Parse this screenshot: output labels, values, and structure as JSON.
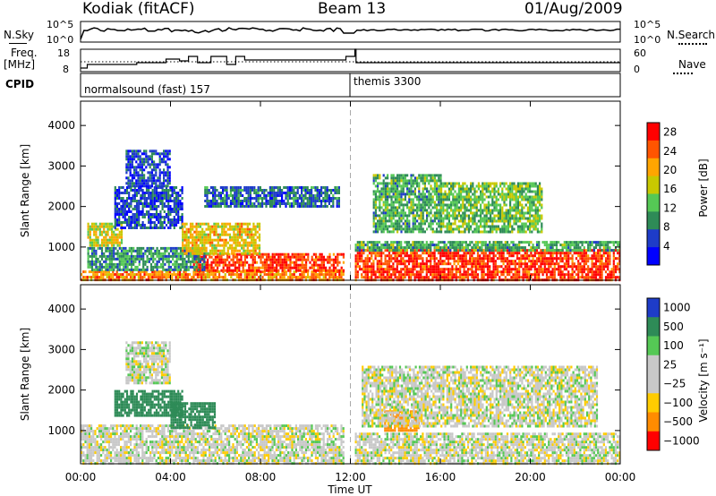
{
  "header": {
    "station": "Kodiak (fitACF)",
    "beam": "Beam 13",
    "date": "01/Aug/2009"
  },
  "strip": {
    "nsky_label": "N.Sky",
    "nsearch_label": "N.Search",
    "freq_label": "Freq.",
    "freq_unit": "[MHz]",
    "nave_label": "Nave",
    "cpid_label": "CPID",
    "left_top_ticks": [
      "10^5",
      "10^0"
    ],
    "right_top_ticks": [
      "10^5",
      "10^0"
    ],
    "freq_ticks": [
      "18",
      "8"
    ],
    "nave_ticks": [
      "60",
      "0"
    ],
    "cpid_segments": [
      {
        "start_hour": 0.0,
        "end_hour": 11.8,
        "label": "normalsound (fast) 157"
      },
      {
        "start_hour": 12.2,
        "end_hour": 24.0,
        "label": "themis 3300"
      }
    ]
  },
  "chart_data": [
    {
      "type": "heatmap",
      "quantity": "power",
      "ylabel": "Slant Range [km]",
      "xlabel": "Time UT",
      "ylim": [
        180,
        4600
      ],
      "xlim": [
        0,
        24
      ],
      "y_ticks": [
        "1000",
        "2000",
        "3000",
        "4000"
      ],
      "y_tick_values": [
        1000,
        2000,
        3000,
        4000
      ],
      "x_ticks": [
        "00:00",
        "04:00",
        "08:00",
        "12:00",
        "16:00",
        "20:00",
        "00:00"
      ],
      "x_tick_values": [
        0,
        4,
        8,
        12,
        16,
        20,
        24
      ],
      "colorbar": {
        "label": "Power [dB]",
        "range": [
          0,
          30
        ],
        "ticks": [
          "4",
          "8",
          "12",
          "16",
          "20",
          "24",
          "28"
        ],
        "tick_values": [
          4,
          8,
          12,
          16,
          20,
          24,
          28
        ],
        "colors": [
          "#0000ff",
          "#1e3cc8",
          "#2e8b57",
          "#55c855",
          "#c8c800",
          "#ffa500",
          "#ff5500",
          "#ff0000"
        ]
      },
      "data_gap_hours": [
        11.7,
        12.2
      ],
      "regions": [
        {
          "t": [
            0.0,
            11.7
          ],
          "r": [
            200,
            420
          ],
          "level": 24
        },
        {
          "t": [
            5.0,
            11.7
          ],
          "r": [
            420,
            850
          ],
          "level": 28
        },
        {
          "t": [
            0.3,
            5.5
          ],
          "r": [
            420,
            1000
          ],
          "level": 10
        },
        {
          "t": [
            0.3,
            1.8
          ],
          "r": [
            1050,
            1600
          ],
          "level": 18
        },
        {
          "t": [
            1.5,
            4.5
          ],
          "r": [
            1500,
            2500
          ],
          "level": 6
        },
        {
          "t": [
            2.0,
            4.0
          ],
          "r": [
            2500,
            3400
          ],
          "level": 6
        },
        {
          "t": [
            4.5,
            8.0
          ],
          "r": [
            850,
            1600
          ],
          "level": 20
        },
        {
          "t": [
            5.5,
            11.5
          ],
          "r": [
            2000,
            2500
          ],
          "level": 8
        },
        {
          "t": [
            12.2,
            24.0
          ],
          "r": [
            200,
            950
          ],
          "level": 28
        },
        {
          "t": [
            12.2,
            24.0
          ],
          "r": [
            950,
            1150
          ],
          "level": 12
        },
        {
          "t": [
            13.0,
            16.0
          ],
          "r": [
            1400,
            2800
          ],
          "level": 12
        },
        {
          "t": [
            16.0,
            20.5
          ],
          "r": [
            1400,
            2600
          ],
          "level": 14
        }
      ]
    },
    {
      "type": "heatmap",
      "quantity": "velocity",
      "ylabel": "Slant Range [km]",
      "xlabel": "Time UT",
      "ylim": [
        180,
        4600
      ],
      "xlim": [
        0,
        24
      ],
      "y_ticks": [
        "1000",
        "2000",
        "3000",
        "4000"
      ],
      "y_tick_values": [
        1000,
        2000,
        3000,
        4000
      ],
      "x_ticks": [
        "00:00",
        "04:00",
        "08:00",
        "12:00",
        "16:00",
        "20:00",
        "00:00"
      ],
      "x_tick_values": [
        0,
        4,
        8,
        12,
        16,
        20,
        24
      ],
      "colorbar": {
        "label": "Velocity [m s⁻¹]",
        "ticks": [
          "1000",
          "500",
          "100",
          "25",
          "−25",
          "−100",
          "−500",
          "−1000"
        ],
        "colors": [
          "#1e3cc8",
          "#2e8b57",
          "#55c855",
          "#c8c8c8",
          "#c8c8c8",
          "#ffcc00",
          "#ff8c00",
          "#ff0000"
        ]
      },
      "data_gap_hours": [
        11.7,
        12.2
      ],
      "regions": [
        {
          "t": [
            0.0,
            11.7
          ],
          "r": [
            200,
            1150
          ],
          "level": 0
        },
        {
          "t": [
            1.5,
            4.5
          ],
          "r": [
            1400,
            2000
          ],
          "level": 150
        },
        {
          "t": [
            4.0,
            6.0
          ],
          "r": [
            1100,
            1700
          ],
          "level": 200
        },
        {
          "t": [
            2.0,
            4.0
          ],
          "r": [
            2200,
            3200
          ],
          "level": 0
        },
        {
          "t": [
            12.2,
            24.0
          ],
          "r": [
            200,
            950
          ],
          "level": 0
        },
        {
          "t": [
            13.5,
            15.0
          ],
          "r": [
            1000,
            1500
          ],
          "level": -150
        },
        {
          "t": [
            12.5,
            23.0
          ],
          "r": [
            1100,
            2600
          ],
          "level": 0
        }
      ]
    }
  ]
}
